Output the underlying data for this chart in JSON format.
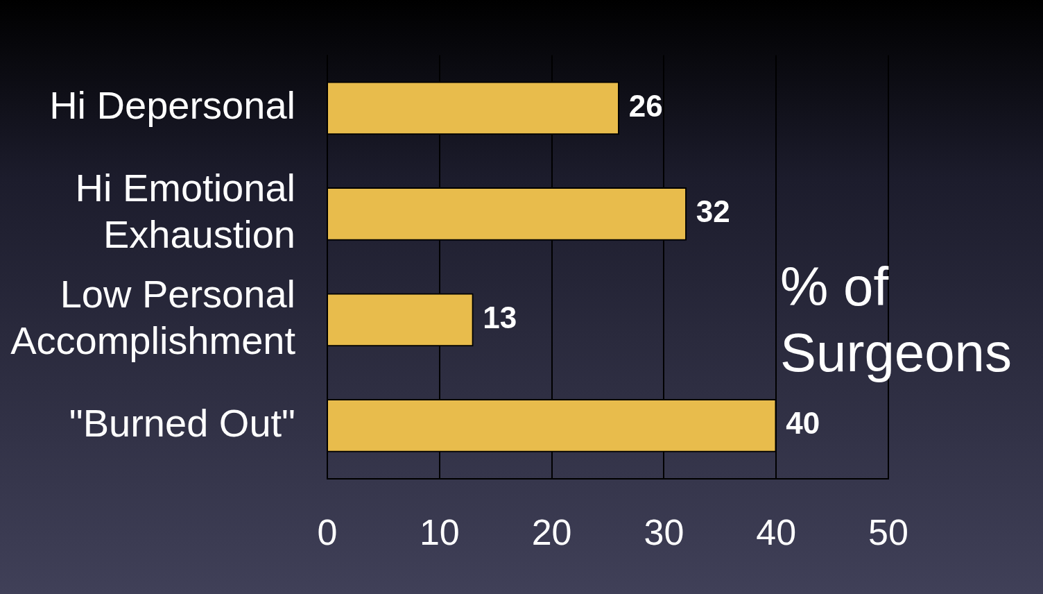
{
  "chart_data": {
    "type": "bar",
    "orientation": "horizontal",
    "categories": [
      "Hi Depersonal",
      "Hi Emotional Exhaustion",
      "Low Personal Accomplishment",
      "\"Burned Out\""
    ],
    "values": [
      26,
      32,
      13,
      40
    ],
    "color": "#e8bc4c",
    "xlim": [
      0,
      50
    ],
    "xticks": [
      0,
      10,
      20,
      30,
      40,
      50
    ],
    "grid": "x",
    "data_labels": true,
    "annotations": [
      "% of Surgeons"
    ]
  }
}
